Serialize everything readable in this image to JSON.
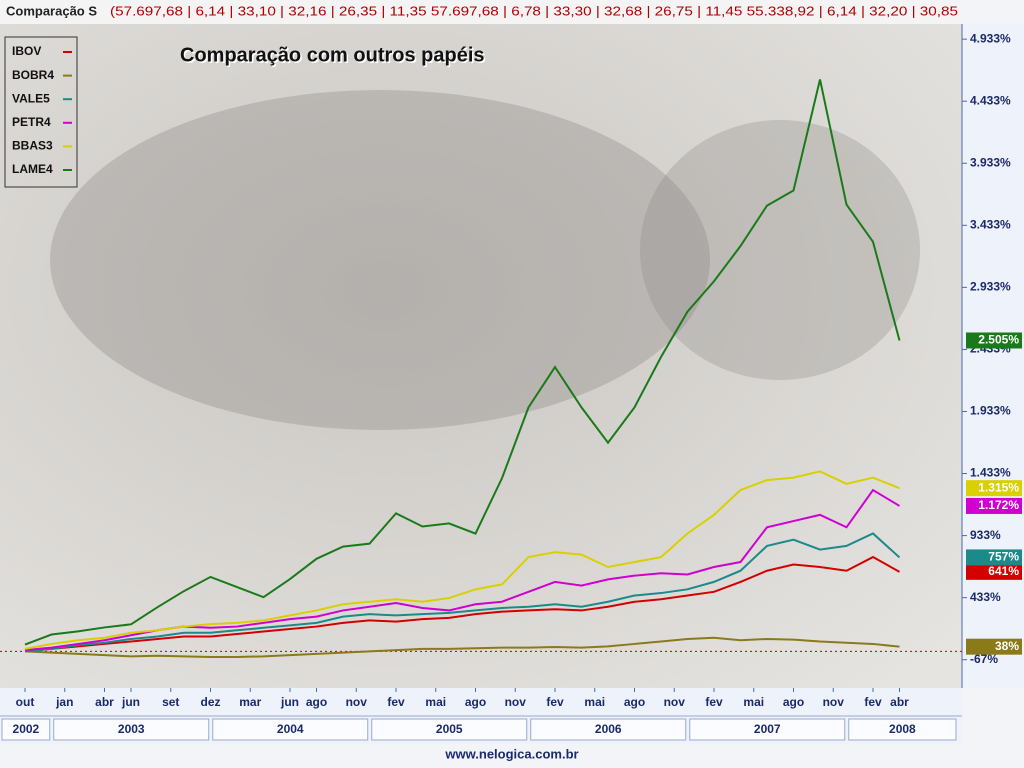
{
  "header": {
    "title": "Comparação S",
    "values": "(57.697,68 | 6,14 | 33,10 | 32,16 | 26,35 | 11,35  57.697,68 | 6,78 | 33,30 | 32,68 | 26,75 | 11,45  55.338,92 | 6,14 | 32,20 | 30,85"
  },
  "footer": "www.nelogica.com.br",
  "chart_data": {
    "type": "line",
    "title": "Comparação com outros papéis",
    "x": [
      "2002-10",
      "2002-12",
      "2003-02",
      "2003-04",
      "2003-06",
      "2003-08",
      "2003-10",
      "2003-12",
      "2004-02",
      "2004-04",
      "2004-06",
      "2004-08",
      "2004-10",
      "2004-12",
      "2005-02",
      "2005-04",
      "2005-06",
      "2005-08",
      "2005-10",
      "2005-12",
      "2006-02",
      "2006-04",
      "2006-06",
      "2006-08",
      "2006-10",
      "2006-12",
      "2007-02",
      "2007-04",
      "2007-06",
      "2007-08",
      "2007-10",
      "2007-12",
      "2008-02",
      "2008-04"
    ],
    "xticks": [
      {
        "value": "2002-10",
        "label": "out"
      },
      {
        "value": "2003-01",
        "label": "jan"
      },
      {
        "value": "2003-04",
        "label": "abr"
      },
      {
        "value": "2003-06",
        "label": "jun"
      },
      {
        "value": "2003-09",
        "label": "set"
      },
      {
        "value": "2003-12",
        "label": "dez"
      },
      {
        "value": "2004-03",
        "label": "mar"
      },
      {
        "value": "2004-06",
        "label": "jun"
      },
      {
        "value": "2004-08",
        "label": "ago"
      },
      {
        "value": "2004-11",
        "label": "nov"
      },
      {
        "value": "2005-02",
        "label": "fev"
      },
      {
        "value": "2005-05",
        "label": "mai"
      },
      {
        "value": "2005-08",
        "label": "ago"
      },
      {
        "value": "2005-11",
        "label": "nov"
      },
      {
        "value": "2006-02",
        "label": "fev"
      },
      {
        "value": "2006-05",
        "label": "mai"
      },
      {
        "value": "2006-08",
        "label": "ago"
      },
      {
        "value": "2006-11",
        "label": "nov"
      },
      {
        "value": "2007-02",
        "label": "fev"
      },
      {
        "value": "2007-05",
        "label": "mai"
      },
      {
        "value": "2007-08",
        "label": "ago"
      },
      {
        "value": "2007-11",
        "label": "nov"
      },
      {
        "value": "2008-02",
        "label": "fev"
      },
      {
        "value": "2008-04",
        "label": "abr"
      }
    ],
    "year_ticks": [
      2002,
      2003,
      2004,
      2005,
      2006,
      2007,
      2008
    ],
    "ylim": [
      -295,
      5055
    ],
    "yticks": [
      {
        "value": 4933,
        "label": "4.933%"
      },
      {
        "value": 4433,
        "label": "4.433%"
      },
      {
        "value": 3933,
        "label": "3.933%"
      },
      {
        "value": 3433,
        "label": "3.433%"
      },
      {
        "value": 2933,
        "label": "2.933%"
      },
      {
        "value": 2433,
        "label": "2.433%"
      },
      {
        "value": 1933,
        "label": "1.933%"
      },
      {
        "value": 1433,
        "label": "1.433%"
      },
      {
        "value": 933,
        "label": "933%"
      },
      {
        "value": 433,
        "label": "433%"
      },
      {
        "value": -67,
        "label": "-67%"
      }
    ],
    "series": [
      {
        "name": "IBOV",
        "color": "#d40000",
        "values": [
          0,
          20,
          40,
          60,
          80,
          100,
          120,
          120,
          140,
          160,
          180,
          200,
          230,
          250,
          240,
          260,
          270,
          300,
          320,
          330,
          340,
          330,
          360,
          400,
          420,
          450,
          480,
          560,
          650,
          700,
          680,
          650,
          760,
          641
        ],
        "value_labels": [
          null,
          null,
          null,
          null,
          null,
          null,
          null,
          null,
          null,
          null,
          null,
          null,
          null,
          null,
          null,
          null,
          null,
          null,
          null,
          null,
          null,
          null,
          null,
          null,
          null,
          null,
          null,
          null,
          null,
          null,
          null,
          null,
          null,
          "641%"
        ]
      },
      {
        "name": "BOBR4",
        "color": "#8a7a1a",
        "values": [
          0,
          -10,
          -20,
          -30,
          -40,
          -35,
          -40,
          -45,
          -45,
          -40,
          -30,
          -20,
          -10,
          0,
          10,
          20,
          20,
          25,
          30,
          30,
          35,
          30,
          40,
          60,
          80,
          100,
          110,
          90,
          100,
          95,
          80,
          70,
          60,
          38
        ],
        "value_labels": [
          null,
          null,
          null,
          null,
          null,
          null,
          null,
          null,
          null,
          null,
          null,
          null,
          null,
          null,
          null,
          null,
          null,
          null,
          null,
          null,
          null,
          null,
          null,
          null,
          null,
          null,
          null,
          null,
          null,
          null,
          null,
          null,
          null,
          "38%"
        ]
      },
      {
        "name": "VALE5",
        "color": "#1a8a8a",
        "values": [
          0,
          20,
          50,
          70,
          100,
          120,
          150,
          150,
          170,
          190,
          210,
          230,
          280,
          300,
          290,
          300,
          310,
          330,
          350,
          360,
          380,
          360,
          400,
          450,
          470,
          500,
          560,
          650,
          850,
          900,
          820,
          850,
          950,
          757
        ],
        "value_labels": [
          null,
          null,
          null,
          null,
          null,
          null,
          null,
          null,
          null,
          null,
          null,
          null,
          null,
          null,
          null,
          null,
          null,
          null,
          null,
          null,
          null,
          null,
          null,
          null,
          null,
          null,
          null,
          null,
          null,
          null,
          null,
          null,
          null,
          "757%"
        ]
      },
      {
        "name": "PETR4",
        "color": "#d000d0",
        "values": [
          10,
          30,
          60,
          90,
          130,
          170,
          200,
          190,
          200,
          230,
          260,
          280,
          330,
          360,
          390,
          350,
          330,
          380,
          400,
          480,
          560,
          530,
          580,
          610,
          630,
          620,
          680,
          720,
          1000,
          1050,
          1100,
          1000,
          1300,
          1172
        ],
        "value_labels": [
          null,
          null,
          null,
          null,
          null,
          null,
          null,
          null,
          null,
          null,
          null,
          null,
          null,
          null,
          null,
          null,
          null,
          null,
          null,
          null,
          null,
          null,
          null,
          null,
          null,
          null,
          null,
          null,
          null,
          null,
          null,
          null,
          null,
          "1.172%"
        ]
      },
      {
        "name": "BBAS3",
        "color": "#d8d000",
        "values": [
          20,
          60,
          90,
          110,
          150,
          170,
          200,
          220,
          230,
          250,
          290,
          330,
          380,
          400,
          420,
          400,
          430,
          500,
          540,
          760,
          800,
          780,
          680,
          720,
          760,
          950,
          1100,
          1300,
          1380,
          1400,
          1450,
          1350,
          1400,
          1315
        ],
        "value_labels": [
          null,
          null,
          null,
          null,
          null,
          null,
          null,
          null,
          null,
          null,
          null,
          null,
          null,
          null,
          null,
          null,
          null,
          null,
          null,
          null,
          null,
          null,
          null,
          null,
          null,
          null,
          null,
          null,
          null,
          null,
          null,
          null,
          null,
          "1.315%"
        ]
      },
      {
        "name": "LAME4",
        "color": "#1a7a1a",
        "values": [
          55,
          136,
          161,
          193,
          218,
          356,
          486,
          600,
          518,
          437,
          583,
          746,
          844,
          868,
          1112,
          1006,
          1031,
          949,
          1396,
          1966,
          2291,
          1966,
          1681,
          1966,
          2372,
          2738,
          2982,
          3266,
          3592,
          3714,
          4608,
          3600,
          3300,
          2505
        ],
        "value_labels": [
          null,
          null,
          null,
          null,
          null,
          null,
          null,
          null,
          null,
          null,
          null,
          null,
          null,
          null,
          null,
          null,
          null,
          null,
          null,
          null,
          null,
          null,
          null,
          null,
          null,
          null,
          null,
          null,
          null,
          null,
          null,
          null,
          null,
          "2.505%"
        ]
      }
    ]
  }
}
